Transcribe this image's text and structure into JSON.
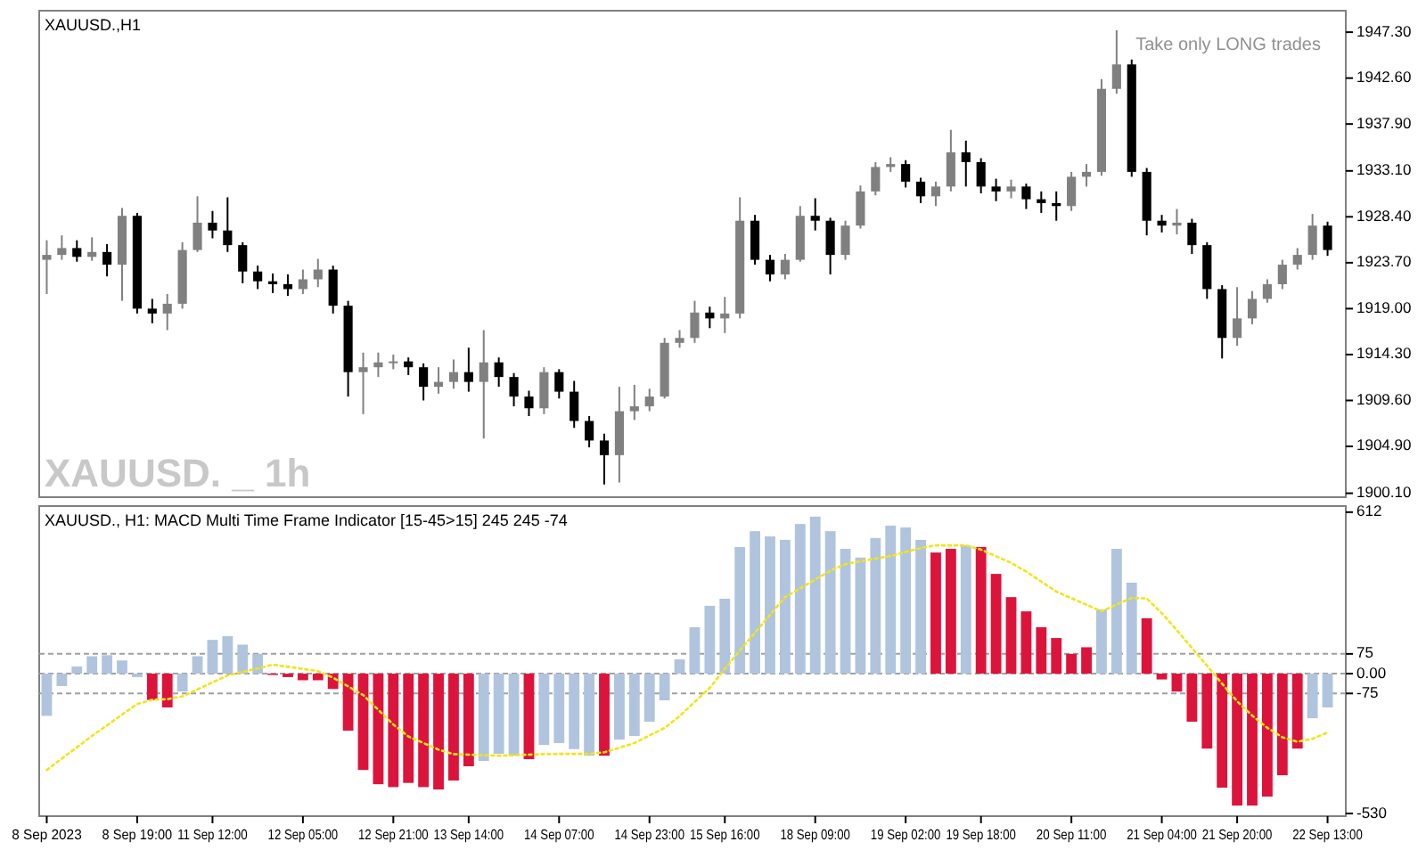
{
  "chart_data": [
    {
      "type": "candlestick",
      "title": "XAUUSD.,H1",
      "annotations": [
        "Take only LONG trades",
        "XAUUSD. _ 1h"
      ],
      "categories": [
        null,
        null,
        null,
        null,
        null,
        null,
        null,
        null,
        null,
        null,
        null,
        null,
        null,
        null,
        null,
        null,
        null,
        null,
        null,
        null,
        null,
        null,
        null,
        null,
        null,
        null,
        null,
        null,
        null,
        null,
        null,
        null,
        null,
        null,
        null,
        null,
        null,
        null,
        null,
        null,
        null,
        null,
        null,
        null,
        null,
        null,
        null,
        null,
        null,
        null,
        null,
        null,
        null,
        null,
        null,
        null,
        null,
        null,
        null,
        null,
        null,
        null,
        null,
        null,
        null,
        null,
        null,
        null,
        null,
        null,
        null,
        null,
        null,
        null,
        null,
        null,
        null,
        null,
        null,
        null,
        null,
        null,
        null,
        null,
        null,
        null
      ],
      "ohlc": [
        [
          1924.0,
          1926.0,
          1920.5,
          1924.5
        ],
        [
          1924.5,
          1926.5,
          1924.0,
          1925.2
        ],
        [
          1925.2,
          1926.0,
          1923.8,
          1924.3
        ],
        [
          1924.3,
          1926.3,
          1923.9,
          1924.8
        ],
        [
          1924.8,
          1925.6,
          1922.3,
          1923.5
        ],
        [
          1923.5,
          1929.3,
          1919.8,
          1928.5
        ],
        [
          1928.5,
          1928.8,
          1918.5,
          1919.0
        ],
        [
          1919.0,
          1920.0,
          1917.5,
          1918.5
        ],
        [
          1918.5,
          1920.5,
          1916.8,
          1919.5
        ],
        [
          1919.5,
          1925.8,
          1919.0,
          1925.0
        ],
        [
          1925.0,
          1930.5,
          1924.8,
          1927.8
        ],
        [
          1927.8,
          1929.0,
          1926.2,
          1927.0
        ],
        [
          1927.0,
          1930.4,
          1924.8,
          1925.5
        ],
        [
          1925.5,
          1925.8,
          1921.6,
          1922.8
        ],
        [
          1922.8,
          1923.4,
          1921.0,
          1921.8
        ],
        [
          1921.8,
          1922.6,
          1920.6,
          1921.5
        ],
        [
          1921.5,
          1922.5,
          1920.3,
          1921.0
        ],
        [
          1921.0,
          1923.0,
          1920.5,
          1922.0
        ],
        [
          1922.0,
          1924.1,
          1921.2,
          1923.0
        ],
        [
          1923.0,
          1923.4,
          1918.5,
          1919.3
        ],
        [
          1919.3,
          1919.8,
          1910.0,
          1912.5
        ],
        [
          1912.5,
          1914.5,
          1908.2,
          1913.0
        ],
        [
          1913.0,
          1914.5,
          1912.0,
          1913.5
        ],
        [
          1913.5,
          1914.3,
          1912.8,
          1913.6
        ],
        [
          1913.6,
          1914.0,
          1912.2,
          1913.0
        ],
        [
          1913.0,
          1913.4,
          1909.6,
          1911.0
        ],
        [
          1911.0,
          1913.0,
          1910.3,
          1911.5
        ],
        [
          1911.5,
          1913.8,
          1910.8,
          1912.5
        ],
        [
          1912.5,
          1915.0,
          1910.5,
          1911.5
        ],
        [
          1911.5,
          1916.8,
          1905.7,
          1913.5
        ],
        [
          1913.5,
          1914.0,
          1911.0,
          1912.0
        ],
        [
          1912.0,
          1912.4,
          1909.0,
          1910.0
        ],
        [
          1910.0,
          1910.6,
          1908.0,
          1908.8
        ],
        [
          1908.8,
          1913.0,
          1908.2,
          1912.5
        ],
        [
          1912.5,
          1912.8,
          1909.8,
          1910.5
        ],
        [
          1910.5,
          1911.6,
          1906.8,
          1907.5
        ],
        [
          1907.5,
          1908.0,
          1904.8,
          1905.5
        ],
        [
          1905.5,
          1906.2,
          1901.0,
          1904.0
        ],
        [
          1904.0,
          1911.0,
          1901.2,
          1908.5
        ],
        [
          1908.5,
          1911.2,
          1907.6,
          1909.0
        ],
        [
          1909.0,
          1910.8,
          1908.5,
          1910.0
        ],
        [
          1910.0,
          1916.0,
          1909.8,
          1915.5
        ],
        [
          1915.5,
          1916.8,
          1915.0,
          1916.0
        ],
        [
          1916.0,
          1919.8,
          1915.5,
          1918.6
        ],
        [
          1918.6,
          1919.2,
          1917.0,
          1918.0
        ],
        [
          1918.0,
          1920.2,
          1916.5,
          1918.5
        ],
        [
          1918.5,
          1930.4,
          1918.0,
          1928.0
        ],
        [
          1928.0,
          1928.6,
          1923.5,
          1924.0
        ],
        [
          1924.0,
          1924.5,
          1921.8,
          1922.5
        ],
        [
          1922.5,
          1924.6,
          1922.0,
          1924.0
        ],
        [
          1924.0,
          1929.5,
          1923.8,
          1928.5
        ],
        [
          1928.5,
          1930.3,
          1927.0,
          1928.0
        ],
        [
          1928.0,
          1928.3,
          1922.5,
          1924.5
        ],
        [
          1924.5,
          1928.0,
          1924.0,
          1927.5
        ],
        [
          1927.5,
          1931.6,
          1927.2,
          1931.0
        ],
        [
          1931.0,
          1934.0,
          1930.6,
          1933.5
        ],
        [
          1933.5,
          1934.5,
          1933.0,
          1933.8
        ],
        [
          1933.8,
          1934.2,
          1931.4,
          1932.0
        ],
        [
          1932.0,
          1932.4,
          1929.8,
          1930.5
        ],
        [
          1930.5,
          1932.0,
          1929.5,
          1931.5
        ],
        [
          1931.5,
          1937.3,
          1931.0,
          1935.0
        ],
        [
          1935.0,
          1936.2,
          1931.5,
          1934.0
        ],
        [
          1934.0,
          1934.4,
          1930.8,
          1931.5
        ],
        [
          1931.5,
          1932.3,
          1930.0,
          1931.0
        ],
        [
          1931.0,
          1932.2,
          1930.3,
          1931.5
        ],
        [
          1931.5,
          1931.8,
          1929.2,
          1930.2
        ],
        [
          1930.2,
          1931.0,
          1928.8,
          1929.8
        ],
        [
          1929.8,
          1931.0,
          1928.0,
          1929.5
        ],
        [
          1929.5,
          1933.0,
          1929.0,
          1932.5
        ],
        [
          1932.5,
          1933.8,
          1931.5,
          1933.0
        ],
        [
          1933.0,
          1942.5,
          1932.6,
          1941.5
        ],
        [
          1941.5,
          1947.5,
          1941.0,
          1944.0
        ],
        [
          1944.0,
          1944.5,
          1932.5,
          1933.0
        ],
        [
          1933.0,
          1933.4,
          1926.5,
          1928.0
        ],
        [
          1928.0,
          1928.6,
          1926.8,
          1927.5
        ],
        [
          1927.5,
          1929.2,
          1926.6,
          1927.8
        ],
        [
          1927.8,
          1928.2,
          1924.6,
          1925.5
        ],
        [
          1925.5,
          1925.8,
          1920.0,
          1921.0
        ],
        [
          1921.0,
          1921.4,
          1913.9,
          1916.0
        ],
        [
          1916.0,
          1921.2,
          1915.2,
          1918.0
        ],
        [
          1918.0,
          1920.8,
          1917.4,
          1920.0
        ],
        [
          1920.0,
          1922.0,
          1919.6,
          1921.5
        ],
        [
          1921.5,
          1924.0,
          1921.0,
          1923.5
        ],
        [
          1923.5,
          1925.2,
          1923.0,
          1924.5
        ],
        [
          1924.5,
          1928.7,
          1924.0,
          1927.5
        ],
        [
          1927.5,
          1927.9,
          1924.4,
          1925.0
        ]
      ],
      "colors": [
        "#808080",
        "#808080",
        "#000000",
        "#808080",
        "#000000",
        "#808080",
        "#000000",
        "#000000",
        "#808080",
        "#808080",
        "#808080",
        "#000000",
        "#000000",
        "#000000",
        "#000000",
        "#000000",
        "#000000",
        "#808080",
        "#808080",
        "#000000",
        "#000000",
        "#808080",
        "#808080",
        "#808080",
        "#000000",
        "#000000",
        "#808080",
        "#808080",
        "#000000",
        "#808080",
        "#000000",
        "#000000",
        "#000000",
        "#808080",
        "#000000",
        "#000000",
        "#000000",
        "#000000",
        "#808080",
        "#808080",
        "#808080",
        "#808080",
        "#808080",
        "#808080",
        "#000000",
        "#808080",
        "#808080",
        "#000000",
        "#000000",
        "#808080",
        "#808080",
        "#000000",
        "#000000",
        "#808080",
        "#808080",
        "#808080",
        "#808080",
        "#000000",
        "#000000",
        "#808080",
        "#808080",
        "#000000",
        "#000000",
        "#000000",
        "#808080",
        "#000000",
        "#000000",
        "#000000",
        "#808080",
        "#808080",
        "#808080",
        "#808080",
        "#000000",
        "#000000",
        "#000000",
        "#808080",
        "#000000",
        "#000000",
        "#000000",
        "#808080",
        "#808080",
        "#808080",
        "#808080",
        "#808080",
        "#808080",
        "#000000"
      ],
      "ylim": [
        1899.7,
        1949.5
      ],
      "yticks": [
        {
          "value": 1947.3,
          "label": "1947.30"
        },
        {
          "value": 1942.6,
          "label": "1942.60"
        },
        {
          "value": 1937.9,
          "label": "1937.90"
        },
        {
          "value": 1933.1,
          "label": "1933.10"
        },
        {
          "value": 1928.4,
          "label": "1928.40"
        },
        {
          "value": 1923.7,
          "label": "1923.70"
        },
        {
          "value": 1919.0,
          "label": "1919.00"
        },
        {
          "value": 1914.3,
          "label": "1914.30"
        },
        {
          "value": 1909.6,
          "label": "1909.60"
        },
        {
          "value": 1904.9,
          "label": "1904.90"
        },
        {
          "value": 1900.1,
          "label": "1900.10"
        }
      ]
    },
    {
      "type": "bar",
      "title": "XAUUSD., H1: MACD Multi Time Frame Indicator [15-45>15] 245 245 -74",
      "categories": [
        "8 Sep 2023",
        null,
        null,
        null,
        null,
        null,
        "8 Sep 19:00",
        null,
        null,
        null,
        null,
        "11 Sep 12:00",
        null,
        null,
        null,
        null,
        null,
        "12 Sep 05:00",
        null,
        null,
        null,
        null,
        null,
        "12 Sep 21:00",
        null,
        null,
        null,
        null,
        "13 Sep 14:00",
        null,
        null,
        null,
        null,
        null,
        "14 Sep 07:00",
        null,
        null,
        null,
        null,
        null,
        "14 Sep 23:00",
        null,
        null,
        null,
        null,
        "15 Sep 16:00",
        null,
        null,
        null,
        null,
        null,
        "18 Sep 09:00",
        null,
        null,
        null,
        null,
        null,
        "19 Sep 02:00",
        null,
        null,
        null,
        null,
        "19 Sep 18:00",
        null,
        null,
        null,
        null,
        null,
        "20 Sep 11:00",
        null,
        null,
        null,
        null,
        null,
        "21 Sep 04:00",
        null,
        null,
        null,
        null,
        "21 Sep 20:00",
        null,
        null,
        null,
        null,
        null,
        "22 Sep 13:00"
      ],
      "series": [
        {
          "type": "bar",
          "values": [
            -160,
            -47,
            27,
            66,
            70,
            50,
            -13,
            -100,
            -128,
            -68,
            66,
            128,
            142,
            110,
            75,
            -5,
            -13,
            -25,
            -25,
            -58,
            -216,
            -365,
            -419,
            -430,
            -414,
            -430,
            -439,
            -405,
            -351,
            -331,
            -304,
            -311,
            -324,
            -270,
            -263,
            -286,
            -311,
            -311,
            -250,
            -236,
            -182,
            -101,
            54,
            176,
            257,
            284,
            480,
            540,
            520,
            507,
            567,
            595,
            540,
            473,
            440,
            514,
            561,
            554,
            507,
            459,
            473,
            486,
            480,
            378,
            290,
            236,
            176,
            135,
            75,
            100,
            243,
            473,
            345,
            210,
            -22,
            -68,
            -182,
            -284,
            -432,
            -500,
            -500,
            -466,
            -385,
            -284,
            -169,
            -128
          ],
          "colors": [
            "#b0c4de",
            "#b0c4de",
            "#b0c4de",
            "#b0c4de",
            "#b0c4de",
            "#b0c4de",
            "#b0c4de",
            "#dc143c",
            "#dc143c",
            "#b0c4de",
            "#b0c4de",
            "#b0c4de",
            "#b0c4de",
            "#b0c4de",
            "#b0c4de",
            "#dc143c",
            "#dc143c",
            "#dc143c",
            "#dc143c",
            "#dc143c",
            "#dc143c",
            "#dc143c",
            "#dc143c",
            "#dc143c",
            "#dc143c",
            "#dc143c",
            "#dc143c",
            "#dc143c",
            "#dc143c",
            "#b0c4de",
            "#b0c4de",
            "#b0c4de",
            "#dc143c",
            "#b0c4de",
            "#b0c4de",
            "#b0c4de",
            "#b0c4de",
            "#dc143c",
            "#b0c4de",
            "#b0c4de",
            "#b0c4de",
            "#b0c4de",
            "#b0c4de",
            "#b0c4de",
            "#b0c4de",
            "#b0c4de",
            "#b0c4de",
            "#b0c4de",
            "#b0c4de",
            "#b0c4de",
            "#b0c4de",
            "#b0c4de",
            "#b0c4de",
            "#b0c4de",
            "#b0c4de",
            "#b0c4de",
            "#b0c4de",
            "#b0c4de",
            "#b0c4de",
            "#dc143c",
            "#dc143c",
            "#b0c4de",
            "#dc143c",
            "#dc143c",
            "#dc143c",
            "#dc143c",
            "#dc143c",
            "#dc143c",
            "#dc143c",
            "#dc143c",
            "#b0c4de",
            "#b0c4de",
            "#b0c4de",
            "#dc143c",
            "#dc143c",
            "#dc143c",
            "#dc143c",
            "#dc143c",
            "#dc143c",
            "#dc143c",
            "#dc143c",
            "#dc143c",
            "#dc143c",
            "#dc143c",
            "#b0c4de",
            "#b0c4de"
          ]
        },
        {
          "type": "line",
          "color": "#f2e41a",
          "line_style": "dotted",
          "values": [
            -365,
            -322,
            -279,
            -236,
            -196,
            -155,
            -115,
            -99,
            -97,
            -86,
            -60,
            -33,
            -7,
            7,
            20,
            34,
            26,
            18,
            10,
            -15,
            -48,
            -81,
            -137,
            -193,
            -238,
            -263,
            -288,
            -305,
            -307,
            -309,
            -311,
            -309,
            -307,
            -305,
            -304,
            -304,
            -304,
            -298,
            -281,
            -263,
            -234,
            -206,
            -161,
            -107,
            -54,
            18,
            88,
            155,
            223,
            290,
            323,
            357,
            390,
            415,
            426,
            436,
            446,
            461,
            476,
            486,
            486,
            486,
            470,
            445,
            420,
            387,
            349,
            311,
            286,
            261,
            236,
            262,
            287,
            285,
            229,
            165,
            97,
            30,
            -38,
            -105,
            -159,
            -205,
            -241,
            -258,
            -247,
            -223
          ]
        }
      ],
      "ref_lines": [
        {
          "axis": "y",
          "value": 75,
          "color": "#a0a0a0",
          "line_style": "dashed"
        },
        {
          "axis": "y",
          "value": 0,
          "color": "#a0a0a0",
          "line_style": "dashed"
        },
        {
          "axis": "y",
          "value": -75,
          "color": "#a0a0a0",
          "line_style": "dashed"
        }
      ],
      "ylim": [
        -540,
        635
      ],
      "yticks": [
        612,
        75,
        {
          "value": 0,
          "label": "0.00"
        },
        -75,
        -530
      ]
    }
  ]
}
